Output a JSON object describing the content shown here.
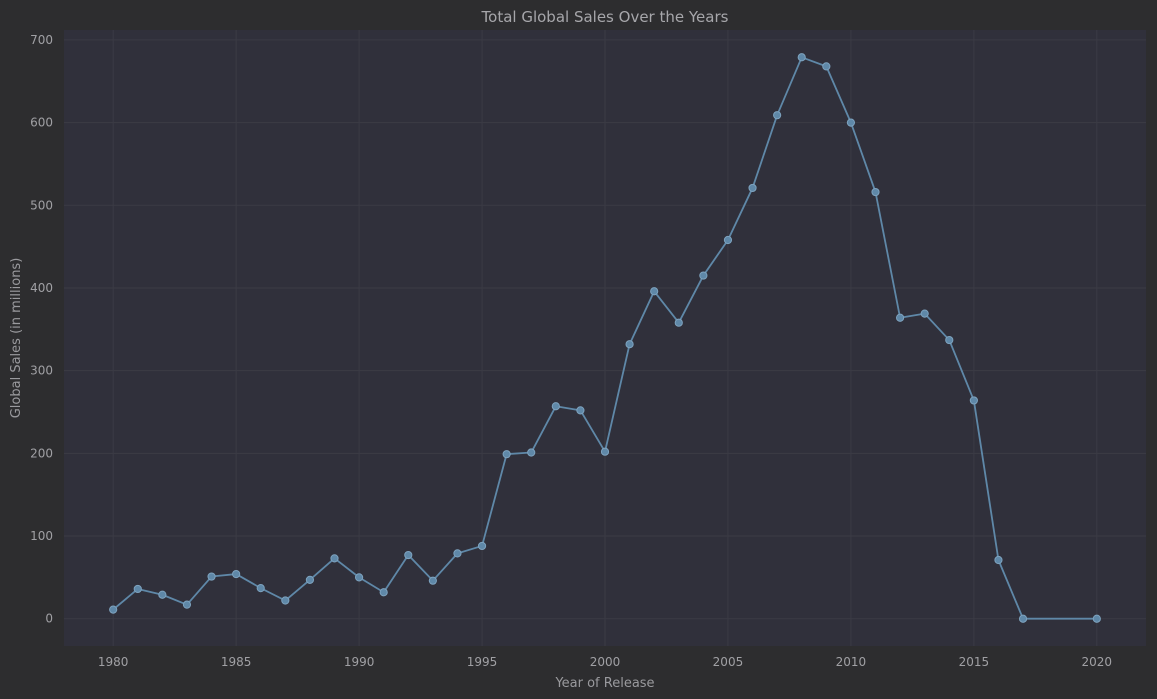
{
  "chart_data": {
    "type": "line",
    "title": "Total Global Sales Over the Years",
    "xlabel": "Year of Release",
    "ylabel": "Global Sales (in millions)",
    "xlim": [
      1978,
      2022
    ],
    "ylim": [
      -33,
      712
    ],
    "xticks": [
      1980,
      1985,
      1990,
      1995,
      2000,
      2005,
      2010,
      2015,
      2020
    ],
    "yticks": [
      0,
      100,
      200,
      300,
      400,
      500,
      600,
      700
    ],
    "grid": true,
    "series": [
      {
        "color": "#5f88a8",
        "x": [
          1980,
          1981,
          1982,
          1983,
          1984,
          1985,
          1986,
          1987,
          1988,
          1989,
          1990,
          1991,
          1992,
          1993,
          1994,
          1995,
          1996,
          1997,
          1998,
          1999,
          2000,
          2001,
          2002,
          2003,
          2004,
          2005,
          2006,
          2007,
          2008,
          2009,
          2010,
          2011,
          2012,
          2013,
          2014,
          2015,
          2016,
          2017,
          2020
        ],
        "y": [
          11,
          36,
          29,
          17,
          51,
          54,
          37,
          22,
          47,
          73,
          50,
          32,
          77,
          46,
          79,
          88,
          199,
          201,
          257,
          252,
          202,
          332,
          396,
          358,
          415,
          458,
          521,
          609,
          679,
          668,
          600,
          516,
          364,
          369,
          337,
          264,
          71,
          0,
          0
        ]
      }
    ]
  }
}
